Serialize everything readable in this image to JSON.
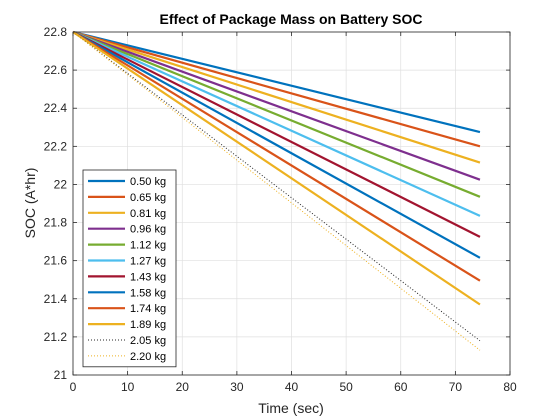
{
  "chart_data": {
    "type": "line",
    "title": "Effect of Package Mass on Battery SOC",
    "xlabel": "Time (sec)",
    "ylabel": "SOC (A*hr)",
    "xlim": [
      0,
      80
    ],
    "ylim": [
      21,
      22.8
    ],
    "xticks": [
      0,
      10,
      20,
      30,
      40,
      50,
      60,
      70,
      80
    ],
    "yticks": [
      21,
      21.2,
      21.4,
      21.6,
      21.8,
      22,
      22.2,
      22.4,
      22.6,
      22.8
    ],
    "grid": true,
    "legend_position": "bottom-left",
    "series": [
      {
        "name": "0.50 kg",
        "color": "#0072BD",
        "style": "solid",
        "x": [
          0,
          74.5
        ],
        "y": [
          22.8,
          22.275
        ]
      },
      {
        "name": "0.65 kg",
        "color": "#D95319",
        "style": "solid",
        "x": [
          0,
          74.5
        ],
        "y": [
          22.8,
          22.2
        ]
      },
      {
        "name": "0.81 kg",
        "color": "#EDB120",
        "style": "solid",
        "x": [
          0,
          74.5
        ],
        "y": [
          22.8,
          22.115
        ]
      },
      {
        "name": "0.96 kg",
        "color": "#7E2F8E",
        "style": "solid",
        "x": [
          0,
          74.5
        ],
        "y": [
          22.8,
          22.025
        ]
      },
      {
        "name": "1.12 kg",
        "color": "#77AC30",
        "style": "solid",
        "x": [
          0,
          74.5
        ],
        "y": [
          22.8,
          21.935
        ]
      },
      {
        "name": "1.27 kg",
        "color": "#4DBEEE",
        "style": "solid",
        "x": [
          0,
          74.5
        ],
        "y": [
          22.8,
          21.835
        ]
      },
      {
        "name": "1.43 kg",
        "color": "#A2142F",
        "style": "solid",
        "x": [
          0,
          74.5
        ],
        "y": [
          22.8,
          21.725
        ]
      },
      {
        "name": "1.58 kg",
        "color": "#0072BD",
        "style": "solid",
        "x": [
          0,
          74.5
        ],
        "y": [
          22.8,
          21.615
        ]
      },
      {
        "name": "1.74 kg",
        "color": "#D95319",
        "style": "solid",
        "x": [
          0,
          74.5
        ],
        "y": [
          22.8,
          21.495
        ]
      },
      {
        "name": "1.89 kg",
        "color": "#EDB120",
        "style": "solid",
        "x": [
          0,
          74.5
        ],
        "y": [
          22.8,
          21.37
        ]
      },
      {
        "name": "2.05 kg",
        "color": "#262626",
        "style": "dotted",
        "x": [
          0,
          74.5
        ],
        "y": [
          22.8,
          21.18
        ]
      },
      {
        "name": "2.20 kg",
        "color": "#EDB120",
        "style": "dotted",
        "x": [
          0,
          74.5
        ],
        "y": [
          22.8,
          21.13
        ]
      }
    ]
  }
}
